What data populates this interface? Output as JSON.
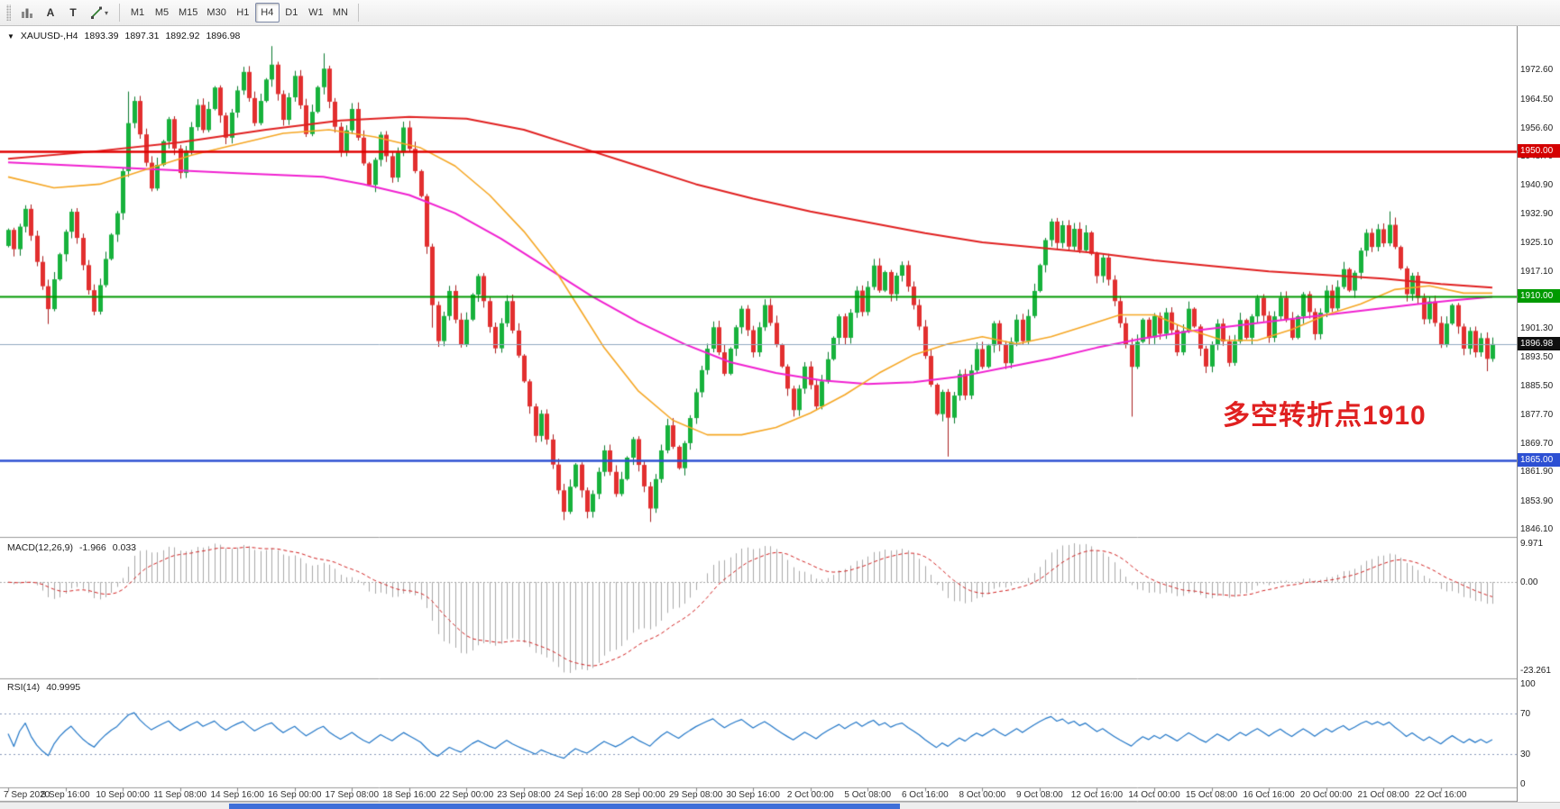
{
  "accent_colors": {
    "up": "#17b23c",
    "up_dark": "#0a7a2e",
    "down": "#e22f2f",
    "down_dark": "#a81e1e",
    "ma_slow": "#e02020",
    "ma_mid": "#f020d0",
    "ma_fast": "#f5a623",
    "macd_hist": "#a8a8a8",
    "macd_signal": "#d02020",
    "rsi_line": "#2176c7"
  },
  "toolbar": {
    "arrow_label": "A",
    "text_label": "T",
    "timeframes": [
      "M1",
      "M5",
      "M15",
      "M30",
      "H1",
      "H4",
      "D1",
      "W1",
      "MN"
    ],
    "active_timeframe": "H4"
  },
  "chart": {
    "header": {
      "symbol": "XAUUSD-,H4",
      "open": "1893.39",
      "high": "1897.31",
      "low": "1892.92",
      "close": "1896.98"
    },
    "annotation": {
      "text": "多空转折点1910",
      "color": "#e02020"
    }
  },
  "chart_data": {
    "type": "candlestick",
    "symbol": "XAUUSD-",
    "timeframe": "H4",
    "last_quote": {
      "open": 1893.39,
      "high": 1897.31,
      "low": 1892.92,
      "close": 1896.98
    },
    "price_axis": {
      "min": 1846.1,
      "max": 1972.6,
      "ticks": [
        "1972.60",
        "1964.50",
        "1956.60",
        "1948.70",
        "1940.90",
        "1932.90",
        "1925.10",
        "1917.10",
        "1909.20",
        "1901.30",
        "1893.50",
        "1885.50",
        "1877.70",
        "1869.70",
        "1861.90",
        "1853.90",
        "1846.10"
      ]
    },
    "levels": [
      {
        "price": 1950.0,
        "label": "1950.00",
        "line_color": "#e00000",
        "badge_color": "#d40000",
        "width": 2.5,
        "current": false
      },
      {
        "price": 1910.0,
        "label": "1910.00",
        "line_color": "#009a00",
        "badge_color": "#009a00",
        "width": 2,
        "current": false
      },
      {
        "price": 1896.98,
        "label": "1896.98",
        "line_color": "#90a8c0",
        "badge_color": "#101010",
        "width": 1,
        "current": true
      },
      {
        "price": 1865.0,
        "label": "1865.00",
        "line_color": "#2d50d3",
        "badge_color": "#2d50d3",
        "width": 2.5,
        "current": false
      }
    ],
    "time_labels": [
      "7 Sep 2020",
      "8 Sep 16:00",
      "10 Sep 00:00",
      "11 Sep 08:00",
      "14 Sep 16:00",
      "16 Sep 00:00",
      "17 Sep 08:00",
      "18 Sep 16:00",
      "22 Sep 00:00",
      "23 Sep 08:00",
      "24 Sep 16:00",
      "28 Sep 00:00",
      "29 Sep 08:00",
      "30 Sep 16:00",
      "2 Oct 00:00",
      "5 Oct 08:00",
      "6 Oct 16:00",
      "8 Oct 00:00",
      "9 Oct 08:00",
      "12 Oct 16:00",
      "14 Oct 00:00",
      "15 Oct 08:00",
      "16 Oct 16:00",
      "20 Oct 00:00",
      "21 Oct 08:00",
      "22 Oct 16:00"
    ],
    "candles": {
      "first_open": 1924.0,
      "closes": [
        1928.4,
        1923.1,
        1929.3,
        1934.2,
        1926.8,
        1919.6,
        1912.9,
        1906.6,
        1914.8,
        1921.7,
        1927.9,
        1933.4,
        1926.2,
        1918.7,
        1911.8,
        1905.9,
        1913.2,
        1920.4,
        1927.1,
        1933.0,
        1944.6,
        1957.8,
        1963.9,
        1954.7,
        1946.9,
        1939.8,
        1946.3,
        1952.8,
        1958.9,
        1950.8,
        1944.1,
        1950.3,
        1956.7,
        1962.8,
        1955.9,
        1961.7,
        1967.6,
        1959.9,
        1953.8,
        1960.7,
        1966.8,
        1971.9,
        1964.7,
        1957.8,
        1963.9,
        1969.8,
        1973.9,
        1965.8,
        1958.7,
        1964.9,
        1970.8,
        1962.7,
        1954.8,
        1960.9,
        1967.7,
        1972.8,
        1963.7,
        1956.8,
        1949.9,
        1955.8,
        1961.7,
        1953.8,
        1946.7,
        1940.8,
        1947.7,
        1954.6,
        1948.7,
        1942.8,
        1949.7,
        1956.6,
        1950.7,
        1944.6,
        1937.7,
        1923.8,
        1907.7,
        1897.8,
        1904.7,
        1911.6,
        1903.7,
        1896.8,
        1903.7,
        1910.6,
        1915.7,
        1908.8,
        1901.7,
        1895.8,
        1902.7,
        1908.8,
        1900.7,
        1893.8,
        1886.7,
        1879.8,
        1871.7,
        1877.8,
        1870.7,
        1863.8,
        1856.7,
        1850.8,
        1857.7,
        1863.8,
        1856.7,
        1850.8,
        1855.7,
        1861.8,
        1867.7,
        1861.8,
        1855.7,
        1859.8,
        1865.7,
        1870.8,
        1863.7,
        1857.8,
        1851.7,
        1859.8,
        1867.7,
        1874.6,
        1868.7,
        1862.8,
        1869.7,
        1876.6,
        1883.7,
        1889.8,
        1895.7,
        1901.6,
        1894.7,
        1888.8,
        1895.7,
        1901.6,
        1906.7,
        1900.8,
        1894.7,
        1901.6,
        1907.7,
        1902.8,
        1896.7,
        1890.8,
        1884.7,
        1878.8,
        1884.7,
        1890.8,
        1885.7,
        1879.8,
        1886.7,
        1892.8,
        1898.7,
        1904.6,
        1898.7,
        1905.6,
        1911.7,
        1905.8,
        1912.7,
        1918.6,
        1911.7,
        1916.8,
        1910.7,
        1915.8,
        1918.7,
        1912.8,
        1907.7,
        1901.8,
        1893.7,
        1885.8,
        1877.7,
        1883.8,
        1876.7,
        1882.8,
        1888.7,
        1882.8,
        1889.7,
        1895.6,
        1890.7,
        1896.6,
        1902.7,
        1896.8,
        1891.7,
        1897.6,
        1903.7,
        1897.8,
        1904.7,
        1911.6,
        1918.7,
        1925.6,
        1930.7,
        1924.8,
        1929.7,
        1923.8,
        1928.7,
        1922.8,
        1927.7,
        1921.8,
        1915.7,
        1920.8,
        1914.7,
        1908.8,
        1902.7,
        1896.8,
        1890.7,
        1897.6,
        1903.7,
        1898.8,
        1904.7,
        1899.8,
        1905.7,
        1900.8,
        1894.7,
        1900.6,
        1906.7,
        1901.8,
        1895.7,
        1890.8,
        1896.7,
        1902.6,
        1897.7,
        1891.8,
        1897.7,
        1903.6,
        1898.7,
        1904.6,
        1909.7,
        1904.8,
        1898.7,
        1904.6,
        1909.7,
        1903.8,
        1898.7,
        1904.6,
        1910.7,
        1905.8,
        1899.7,
        1905.6,
        1911.7,
        1906.8,
        1912.7,
        1917.6,
        1911.7,
        1916.6,
        1922.7,
        1927.6,
        1923.7,
        1928.6,
        1924.7,
        1929.8,
        1923.7,
        1917.8,
        1910.7,
        1915.8,
        1909.7,
        1903.8,
        1908.7,
        1902.8,
        1896.7,
        1902.6,
        1907.7,
        1901.8,
        1895.7,
        1900.6,
        1894.7,
        1898.6,
        1892.9,
        1896.98
      ],
      "spikes": {
        "7": {
          "l": 1902.5
        },
        "21": {
          "h": 1966.5
        },
        "46": {
          "h": 1979.0
        },
        "55": {
          "h": 1977.0
        },
        "74": {
          "l": 1901.5
        },
        "97": {
          "l": 1848.5
        },
        "112": {
          "l": 1848.0
        },
        "164": {
          "l": 1866.0
        },
        "196": {
          "l": 1877.0
        },
        "241": {
          "h": 1933.5
        },
        "258": {
          "l": 1889.5
        }
      }
    },
    "moving_averages": [
      {
        "name": "ma-slow-red",
        "color": "#e02020",
        "width": 2,
        "points": [
          [
            0,
            1948
          ],
          [
            15,
            1950
          ],
          [
            30,
            1952.5
          ],
          [
            45,
            1956
          ],
          [
            58,
            1958.5
          ],
          [
            70,
            1959.5
          ],
          [
            80,
            1959
          ],
          [
            90,
            1956
          ],
          [
            100,
            1951
          ],
          [
            110,
            1946
          ],
          [
            120,
            1941
          ],
          [
            130,
            1937
          ],
          [
            140,
            1933.5
          ],
          [
            150,
            1930.5
          ],
          [
            160,
            1927.5
          ],
          [
            170,
            1925
          ],
          [
            180,
            1923.5
          ],
          [
            190,
            1922
          ],
          [
            200,
            1920
          ],
          [
            210,
            1918.5
          ],
          [
            220,
            1917
          ],
          [
            230,
            1916
          ],
          [
            240,
            1915
          ],
          [
            250,
            1913.5
          ],
          [
            259,
            1912.5
          ]
        ]
      },
      {
        "name": "ma-mid-magenta",
        "color": "#f020d0",
        "width": 2,
        "points": [
          [
            0,
            1947
          ],
          [
            20,
            1945.5
          ],
          [
            40,
            1944
          ],
          [
            55,
            1943
          ],
          [
            62,
            1941
          ],
          [
            70,
            1938
          ],
          [
            78,
            1933
          ],
          [
            86,
            1926
          ],
          [
            94,
            1918
          ],
          [
            102,
            1910
          ],
          [
            110,
            1903
          ],
          [
            118,
            1897
          ],
          [
            126,
            1892
          ],
          [
            134,
            1889
          ],
          [
            142,
            1887
          ],
          [
            150,
            1886
          ],
          [
            158,
            1886.5
          ],
          [
            166,
            1888
          ],
          [
            174,
            1890.5
          ],
          [
            182,
            1893
          ],
          [
            190,
            1896
          ],
          [
            198,
            1898.5
          ],
          [
            206,
            1900.5
          ],
          [
            214,
            1902
          ],
          [
            222,
            1903.5
          ],
          [
            230,
            1905
          ],
          [
            238,
            1906.5
          ],
          [
            246,
            1908
          ],
          [
            252,
            1909
          ],
          [
            259,
            1910
          ]
        ]
      },
      {
        "name": "ma-fast-orange",
        "color": "#f5a623",
        "width": 1.6,
        "points": [
          [
            0,
            1943
          ],
          [
            8,
            1940
          ],
          [
            16,
            1941
          ],
          [
            24,
            1945
          ],
          [
            32,
            1949
          ],
          [
            40,
            1952
          ],
          [
            48,
            1955
          ],
          [
            56,
            1956
          ],
          [
            64,
            1954
          ],
          [
            72,
            1951
          ],
          [
            78,
            1946
          ],
          [
            84,
            1938
          ],
          [
            90,
            1928
          ],
          [
            96,
            1916
          ],
          [
            100,
            1906
          ],
          [
            104,
            1896
          ],
          [
            110,
            1884
          ],
          [
            116,
            1876
          ],
          [
            122,
            1872
          ],
          [
            128,
            1872
          ],
          [
            134,
            1874
          ],
          [
            140,
            1878
          ],
          [
            146,
            1883
          ],
          [
            152,
            1889
          ],
          [
            158,
            1894
          ],
          [
            164,
            1897
          ],
          [
            170,
            1899
          ],
          [
            176,
            1897
          ],
          [
            182,
            1899
          ],
          [
            188,
            1902
          ],
          [
            194,
            1905
          ],
          [
            200,
            1905
          ],
          [
            206,
            1901
          ],
          [
            212,
            1898
          ],
          [
            218,
            1898
          ],
          [
            224,
            1901
          ],
          [
            230,
            1905
          ],
          [
            236,
            1908
          ],
          [
            242,
            1912
          ],
          [
            248,
            1913
          ],
          [
            254,
            1911
          ],
          [
            259,
            1911
          ]
        ]
      }
    ],
    "indicators": [
      {
        "name": "MACD",
        "label": "MACD(12,26,9)",
        "value_main": "-1.966",
        "value_signal": "0.033",
        "axis": [
          "9.971",
          "0.00",
          "-23.261"
        ],
        "range": [
          -23.261,
          9.971
        ]
      },
      {
        "name": "RSI",
        "label": "RSI(14)",
        "value": "40.9995",
        "axis": [
          "100",
          "70",
          "30",
          "0"
        ],
        "levels": [
          70,
          30
        ]
      }
    ]
  }
}
